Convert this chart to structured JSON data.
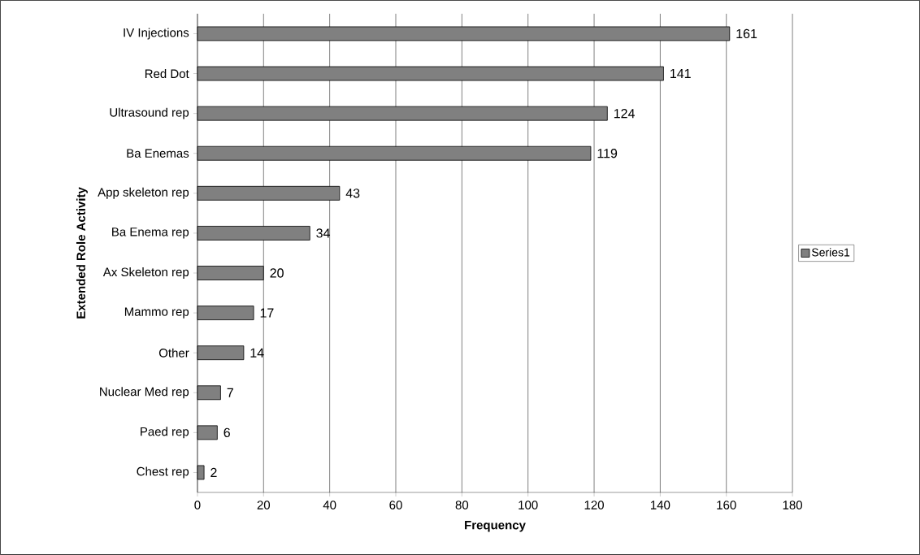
{
  "chart_data": {
    "type": "bar",
    "orientation": "horizontal",
    "xlabel": "Frequency",
    "ylabel": "Extended Role Activity",
    "categories": [
      "IV Injections",
      "Red Dot",
      "Ultrasound rep",
      "Ba Enemas",
      "App skeleton rep",
      "Ba Enema rep",
      "Ax Skeleton rep",
      "Mammo rep",
      "Other",
      "Nuclear Med rep",
      "Paed rep",
      "Chest rep"
    ],
    "series": [
      {
        "name": "Series1",
        "color": "#808080",
        "values": [
          161,
          141,
          124,
          119,
          43,
          34,
          20,
          17,
          14,
          7,
          6,
          2
        ]
      }
    ],
    "xlim": [
      0,
      180
    ],
    "xticks": [
      0,
      20,
      40,
      60,
      80,
      100,
      120,
      140,
      160,
      180
    ],
    "grid": "x",
    "legend": "right",
    "data_labels": true
  }
}
